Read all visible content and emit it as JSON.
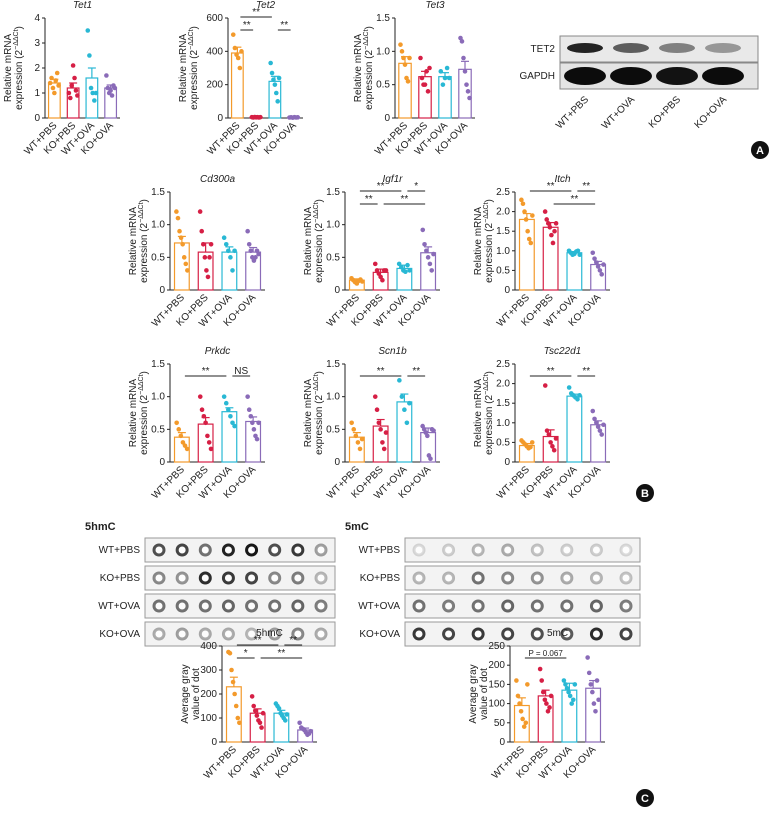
{
  "panels": [
    "A",
    "B",
    "C"
  ],
  "blot": {
    "rows": [
      "TET2",
      "GAPDH"
    ],
    "lanes": [
      "WT+PBS",
      "WT+OVA",
      "KO+PBS",
      "KO+OVA"
    ]
  },
  "dot_blots": [
    {
      "title": "5hmC",
      "rows": [
        "WT+PBS",
        "KO+PBS",
        "WT+OVA",
        "KO+OVA"
      ]
    },
    {
      "title": "5mC",
      "rows": [
        "WT+PBS",
        "KO+PBS",
        "WT+OVA",
        "KO+OVA"
      ]
    }
  ],
  "chart_data": [
    {
      "type": "bar",
      "title": "Tet1",
      "ylabel": [
        "Relative mRNA",
        [
          "expression (2",
          "−ΔΔCt",
          ")"
        ]
      ],
      "categories": [
        "WT+PBS",
        "KO+PBS",
        "WT+OVA",
        "KO+OVA"
      ],
      "colors": [
        "#f39a2b",
        "#d61f45",
        "#29b8d4",
        "#8a6bb8"
      ],
      "values": [
        1.4,
        1.2,
        1.6,
        1.2
      ],
      "errors": [
        0.15,
        0.2,
        0.4,
        0.12
      ],
      "points": [
        [
          1.4,
          1.6,
          1.2,
          1.0,
          1.5,
          1.8,
          1.3
        ],
        [
          1.0,
          0.8,
          1.3,
          2.1,
          1.6,
          1.1,
          0.9
        ],
        [
          3.5,
          2.5,
          1.2,
          1.0,
          0.7,
          1.0
        ],
        [
          1.7,
          1.2,
          1.0,
          1.1,
          0.9,
          1.3,
          1.2
        ]
      ],
      "ylim": [
        0,
        4
      ],
      "yticks": [
        0,
        1,
        2,
        3,
        4
      ],
      "annotations": []
    },
    {
      "type": "bar",
      "title": "Tet2",
      "ylabel": [
        "Relative mRNA",
        [
          "expression (2",
          "−ΔΔCt",
          ")"
        ]
      ],
      "categories": [
        "WT+PBS",
        "KO+PBS",
        "WT+OVA",
        "KO+OVA"
      ],
      "colors": [
        "#f39a2b",
        "#d61f45",
        "#29b8d4",
        "#8a6bb8"
      ],
      "values": [
        390,
        5,
        220,
        5
      ],
      "errors": [
        35,
        2,
        30,
        2
      ],
      "points": [
        [
          500,
          420,
          380,
          360,
          300,
          400
        ],
        [
          5,
          3,
          6,
          4,
          5,
          3,
          5
        ],
        [
          330,
          270,
          230,
          200,
          150,
          100,
          240
        ],
        [
          3,
          4,
          2,
          5,
          3,
          4
        ]
      ],
      "ylim": [
        0,
        600
      ],
      "yticks": [
        0,
        200,
        400,
        600
      ],
      "annotations": [
        {
          "between": [
            "WT+PBS",
            "KO+PBS"
          ],
          "label": "**"
        },
        {
          "between": [
            "WT+PBS",
            "WT+OVA"
          ],
          "label": "**"
        },
        {
          "between": [
            "WT+OVA",
            "KO+OVA"
          ],
          "label": "**"
        }
      ]
    },
    {
      "type": "bar",
      "title": "Tet3",
      "ylabel": [
        "Relative mRNA",
        [
          "expression (2",
          "−ΔΔCt",
          ")"
        ]
      ],
      "categories": [
        "WT+PBS",
        "KO+PBS",
        "WT+OVA",
        "KO+OVA"
      ],
      "colors": [
        "#f39a2b",
        "#d61f45",
        "#29b8d4",
        "#8a6bb8"
      ],
      "values": [
        0.82,
        0.62,
        0.62,
        0.73
      ],
      "errors": [
        0.1,
        0.08,
        0.06,
        0.12
      ],
      "points": [
        [
          1.1,
          1.0,
          0.9,
          0.8,
          0.6,
          0.55,
          0.9
        ],
        [
          0.9,
          0.6,
          0.5,
          0.5,
          0.7,
          0.4,
          0.75
        ],
        [
          0.7,
          0.5,
          0.6,
          0.75,
          0.6
        ],
        [
          1.2,
          1.15,
          0.9,
          0.7,
          0.5,
          0.4,
          0.3
        ]
      ],
      "ylim": [
        0,
        1.5
      ],
      "yticks": [
        0,
        0.5,
        {
          "value": 1,
          "label": "1.0"
        },
        1.5
      ],
      "annotations": []
    },
    {
      "type": "bar",
      "title": "Cd300a",
      "ylabel": [
        "Relative mRNA",
        [
          "expression (2",
          "−ΔΔCt",
          ")"
        ]
      ],
      "categories": [
        "WT+PBS",
        "KO+PBS",
        "WT+OVA",
        "KO+OVA"
      ],
      "colors": [
        "#f39a2b",
        "#d61f45",
        "#29b8d4",
        "#8a6bb8"
      ],
      "values": [
        0.72,
        0.58,
        0.58,
        0.58
      ],
      "errors": [
        0.1,
        0.14,
        0.08,
        0.07
      ],
      "points": [
        [
          1.2,
          1.1,
          0.9,
          0.8,
          0.7,
          0.5,
          0.4,
          0.3
        ],
        [
          1.2,
          0.9,
          0.7,
          0.5,
          0.3,
          0.2,
          0.5,
          0.7
        ],
        [
          0.8,
          0.7,
          0.6,
          0.5,
          0.3,
          0.6
        ],
        [
          0.9,
          0.7,
          0.6,
          0.5,
          0.45,
          0.5,
          0.6,
          0.55
        ]
      ],
      "ylim": [
        0,
        1.5
      ],
      "yticks": [
        0,
        0.5,
        {
          "value": 1,
          "label": "1.0"
        },
        1.5
      ],
      "annotations": []
    },
    {
      "type": "bar",
      "title": "Igf1r",
      "ylabel": [
        "Relative mRNA",
        [
          "expression (2",
          "−ΔΔCt",
          ")"
        ]
      ],
      "categories": [
        "WT+PBS",
        "KO+PBS",
        "WT+OVA",
        "KO+OVA"
      ],
      "colors": [
        "#f39a2b",
        "#d61f45",
        "#29b8d4",
        "#8a6bb8"
      ],
      "values": [
        0.15,
        0.27,
        0.33,
        0.57
      ],
      "errors": [
        0.02,
        0.05,
        0.05,
        0.09
      ],
      "points": [
        [
          0.18,
          0.15,
          0.12,
          0.1,
          0.14,
          0.16,
          0.13
        ],
        [
          0.4,
          0.3,
          0.25,
          0.2,
          0.15,
          0.3,
          0.3
        ],
        [
          0.4,
          0.35,
          0.3,
          0.28,
          0.38,
          0.3
        ],
        [
          0.92,
          0.7,
          0.6,
          0.5,
          0.4,
          0.3,
          0.55
        ]
      ],
      "ylim": [
        0,
        1.5
      ],
      "yticks": [
        0,
        0.5,
        {
          "value": 1,
          "label": "1.0"
        },
        1.5
      ],
      "annotations": [
        {
          "between": [
            "WT+PBS",
            "KO+PBS"
          ],
          "label": "**"
        },
        {
          "between": [
            "KO+PBS",
            "KO+OVA"
          ],
          "label": "**"
        },
        {
          "between": [
            "WT+PBS",
            "WT+OVA"
          ],
          "label": "**"
        },
        {
          "between": [
            "WT+OVA",
            "KO+OVA"
          ],
          "label": "*"
        }
      ]
    },
    {
      "type": "bar",
      "title": "Itch",
      "ylabel": [
        "Relative mRNA",
        [
          "expression (2",
          "−ΔΔCt",
          ")"
        ]
      ],
      "categories": [
        "WT+PBS",
        "KO+PBS",
        "WT+OVA",
        "KO+OVA"
      ],
      "colors": [
        "#f39a2b",
        "#d61f45",
        "#29b8d4",
        "#8a6bb8"
      ],
      "values": [
        1.8,
        1.6,
        0.95,
        0.65
      ],
      "errors": [
        0.15,
        0.12,
        0.03,
        0.08
      ],
      "points": [
        [
          2.3,
          2.2,
          2.0,
          1.8,
          1.5,
          1.3,
          1.2,
          1.9
        ],
        [
          2.0,
          1.8,
          1.7,
          1.6,
          1.4,
          1.2,
          1.5,
          1.7
        ],
        [
          1.0,
          0.95,
          0.9,
          0.92,
          0.98,
          1.0,
          0.9
        ],
        [
          0.95,
          0.8,
          0.7,
          0.6,
          0.5,
          0.4,
          0.65
        ]
      ],
      "ylim": [
        0,
        2.5
      ],
      "yticks": [
        0,
        0.5,
        {
          "value": 1,
          "label": "1.0"
        },
        1.5,
        {
          "value": 2,
          "label": "2.0"
        },
        2.5
      ],
      "annotations": [
        {
          "between": [
            "KO+PBS",
            "KO+OVA"
          ],
          "label": "**"
        },
        {
          "between": [
            "WT+PBS",
            "WT+OVA"
          ],
          "label": "**"
        },
        {
          "between": [
            "WT+OVA",
            "KO+OVA"
          ],
          "label": "**"
        }
      ]
    },
    {
      "type": "bar",
      "title": "Prkdc",
      "ylabel": [
        "Relative mRNA",
        [
          "expression (2",
          "−ΔΔCt",
          ")"
        ]
      ],
      "categories": [
        "WT+PBS",
        "KO+PBS",
        "WT+OVA",
        "KO+OVA"
      ],
      "colors": [
        "#f39a2b",
        "#d61f45",
        "#29b8d4",
        "#8a6bb8"
      ],
      "values": [
        0.38,
        0.58,
        0.77,
        0.62
      ],
      "errors": [
        0.07,
        0.1,
        0.06,
        0.07
      ],
      "points": [
        [
          0.6,
          0.5,
          0.4,
          0.3,
          0.25,
          0.2
        ],
        [
          1.0,
          0.8,
          0.7,
          0.6,
          0.4,
          0.3,
          0.2
        ],
        [
          1.0,
          0.9,
          0.8,
          0.7,
          0.6,
          0.55
        ],
        [
          1.0,
          0.8,
          0.7,
          0.6,
          0.5,
          0.4,
          0.35,
          0.6
        ]
      ],
      "ylim": [
        0,
        1.5
      ],
      "yticks": [
        0,
        0.5,
        {
          "value": 1,
          "label": "1.0"
        },
        1.5
      ],
      "annotations": [
        {
          "between": [
            "WT+PBS",
            "WT+OVA"
          ],
          "label": "**"
        },
        {
          "between": [
            "WT+OVA",
            "KO+OVA"
          ],
          "label": "NS"
        }
      ]
    },
    {
      "type": "bar",
      "title": "Scn1b",
      "ylabel": [
        "Relative mRNA",
        [
          "expression (2",
          "−ΔΔCt",
          ")"
        ]
      ],
      "categories": [
        "WT+PBS",
        "KO+PBS",
        "WT+OVA",
        "KO+OVA"
      ],
      "colors": [
        "#f39a2b",
        "#d61f45",
        "#29b8d4",
        "#8a6bb8"
      ],
      "values": [
        0.38,
        0.55,
        0.92,
        0.45
      ],
      "errors": [
        0.07,
        0.1,
        0.12,
        0.07
      ],
      "points": [
        [
          0.6,
          0.5,
          0.4,
          0.3,
          0.2,
          0.35
        ],
        [
          1.0,
          0.8,
          0.6,
          0.5,
          0.3,
          0.2,
          0.45
        ],
        [
          1.25,
          1.0,
          0.8,
          0.6,
          0.9
        ],
        [
          0.55,
          0.5,
          0.45,
          0.4,
          0.1,
          0.05,
          0.5,
          0.48
        ]
      ],
      "ylim": [
        0,
        1.5
      ],
      "yticks": [
        0,
        0.5,
        {
          "value": 1,
          "label": "1.0"
        },
        1.5
      ],
      "annotations": [
        {
          "between": [
            "WT+PBS",
            "WT+OVA"
          ],
          "label": "**"
        },
        {
          "between": [
            "WT+OVA",
            "KO+OVA"
          ],
          "label": "**"
        }
      ]
    },
    {
      "type": "bar",
      "title": "Tsc22d1",
      "ylabel": [
        "Relative mRNA",
        [
          "expression (2",
          "−ΔΔCt",
          ")"
        ]
      ],
      "categories": [
        "WT+PBS",
        "KO+PBS",
        "WT+OVA",
        "KO+OVA"
      ],
      "colors": [
        "#f39a2b",
        "#d61f45",
        "#29b8d4",
        "#8a6bb8"
      ],
      "values": [
        0.42,
        0.65,
        1.68,
        0.95
      ],
      "errors": [
        0.05,
        0.17,
        0.05,
        0.1
      ],
      "points": [
        [
          0.55,
          0.5,
          0.45,
          0.4,
          0.35,
          0.38,
          0.5
        ],
        [
          1.95,
          0.8,
          0.7,
          0.5,
          0.4,
          0.3,
          0.6
        ],
        [
          1.9,
          1.75,
          1.7,
          1.65,
          1.6,
          1.7
        ],
        [
          1.3,
          1.1,
          1.0,
          0.9,
          0.8,
          0.7,
          0.95
        ]
      ],
      "ylim": [
        0,
        2.5
      ],
      "yticks": [
        0,
        0.5,
        {
          "value": 1,
          "label": "1.0"
        },
        1.5,
        {
          "value": 2,
          "label": "2.0"
        },
        2.5
      ],
      "annotations": [
        {
          "between": [
            "WT+PBS",
            "WT+OVA"
          ],
          "label": "**"
        },
        {
          "between": [
            "WT+OVA",
            "KO+OVA"
          ],
          "label": "**"
        }
      ]
    },
    {
      "type": "bar",
      "title": "5hmC",
      "ylabel": [
        "Average gray",
        "value of dot"
      ],
      "categories": [
        "WT+PBS",
        "KO+PBS",
        "WT+OVA",
        "KO+OVA"
      ],
      "colors": [
        "#f39a2b",
        "#d61f45",
        "#29b8d4",
        "#8a6bb8"
      ],
      "values": [
        230,
        120,
        120,
        50
      ],
      "errors": [
        40,
        18,
        12,
        8
      ],
      "points": [
        [
          375,
          370,
          300,
          250,
          200,
          150,
          100,
          80
        ],
        [
          190,
          150,
          130,
          110,
          90,
          80,
          60,
          120
        ],
        [
          160,
          150,
          140,
          120,
          110,
          100,
          90,
          115
        ],
        [
          80,
          60,
          55,
          50,
          40,
          30,
          35,
          45
        ]
      ],
      "ylim": [
        0,
        400
      ],
      "yticks": [
        0,
        100,
        200,
        300,
        400
      ],
      "annotations": [
        {
          "between": [
            "WT+PBS",
            "KO+PBS"
          ],
          "label": "*"
        },
        {
          "between": [
            "KO+PBS",
            "KO+OVA"
          ],
          "label": "**"
        },
        {
          "between": [
            "WT+PBS",
            "WT+OVA"
          ],
          "label": "**"
        },
        {
          "between": [
            "WT+OVA",
            "KO+OVA"
          ],
          "label": "**"
        }
      ]
    },
    {
      "type": "bar",
      "title": "5mC",
      "ylabel": [
        "Average gray",
        "value of dot"
      ],
      "categories": [
        "WT+PBS",
        "KO+PBS",
        "WT+OVA",
        "KO+OVA"
      ],
      "colors": [
        "#f39a2b",
        "#d61f45",
        "#29b8d4",
        "#8a6bb8"
      ],
      "values": [
        95,
        120,
        135,
        140
      ],
      "errors": [
        20,
        15,
        18,
        20
      ],
      "points": [
        [
          160,
          120,
          100,
          80,
          60,
          40,
          50,
          150
        ],
        [
          190,
          160,
          130,
          110,
          100,
          80,
          90,
          120
        ],
        [
          160,
          150,
          140,
          130,
          120,
          100,
          110,
          150
        ],
        [
          220,
          180,
          150,
          130,
          100,
          80,
          160,
          110
        ]
      ],
      "ylim": [
        0,
        250
      ],
      "yticks": [
        0,
        50,
        100,
        150,
        200,
        250
      ],
      "annotations": [
        {
          "between": [
            "WT+PBS",
            "WT+OVA"
          ],
          "label": "P = 0.067"
        }
      ]
    }
  ]
}
